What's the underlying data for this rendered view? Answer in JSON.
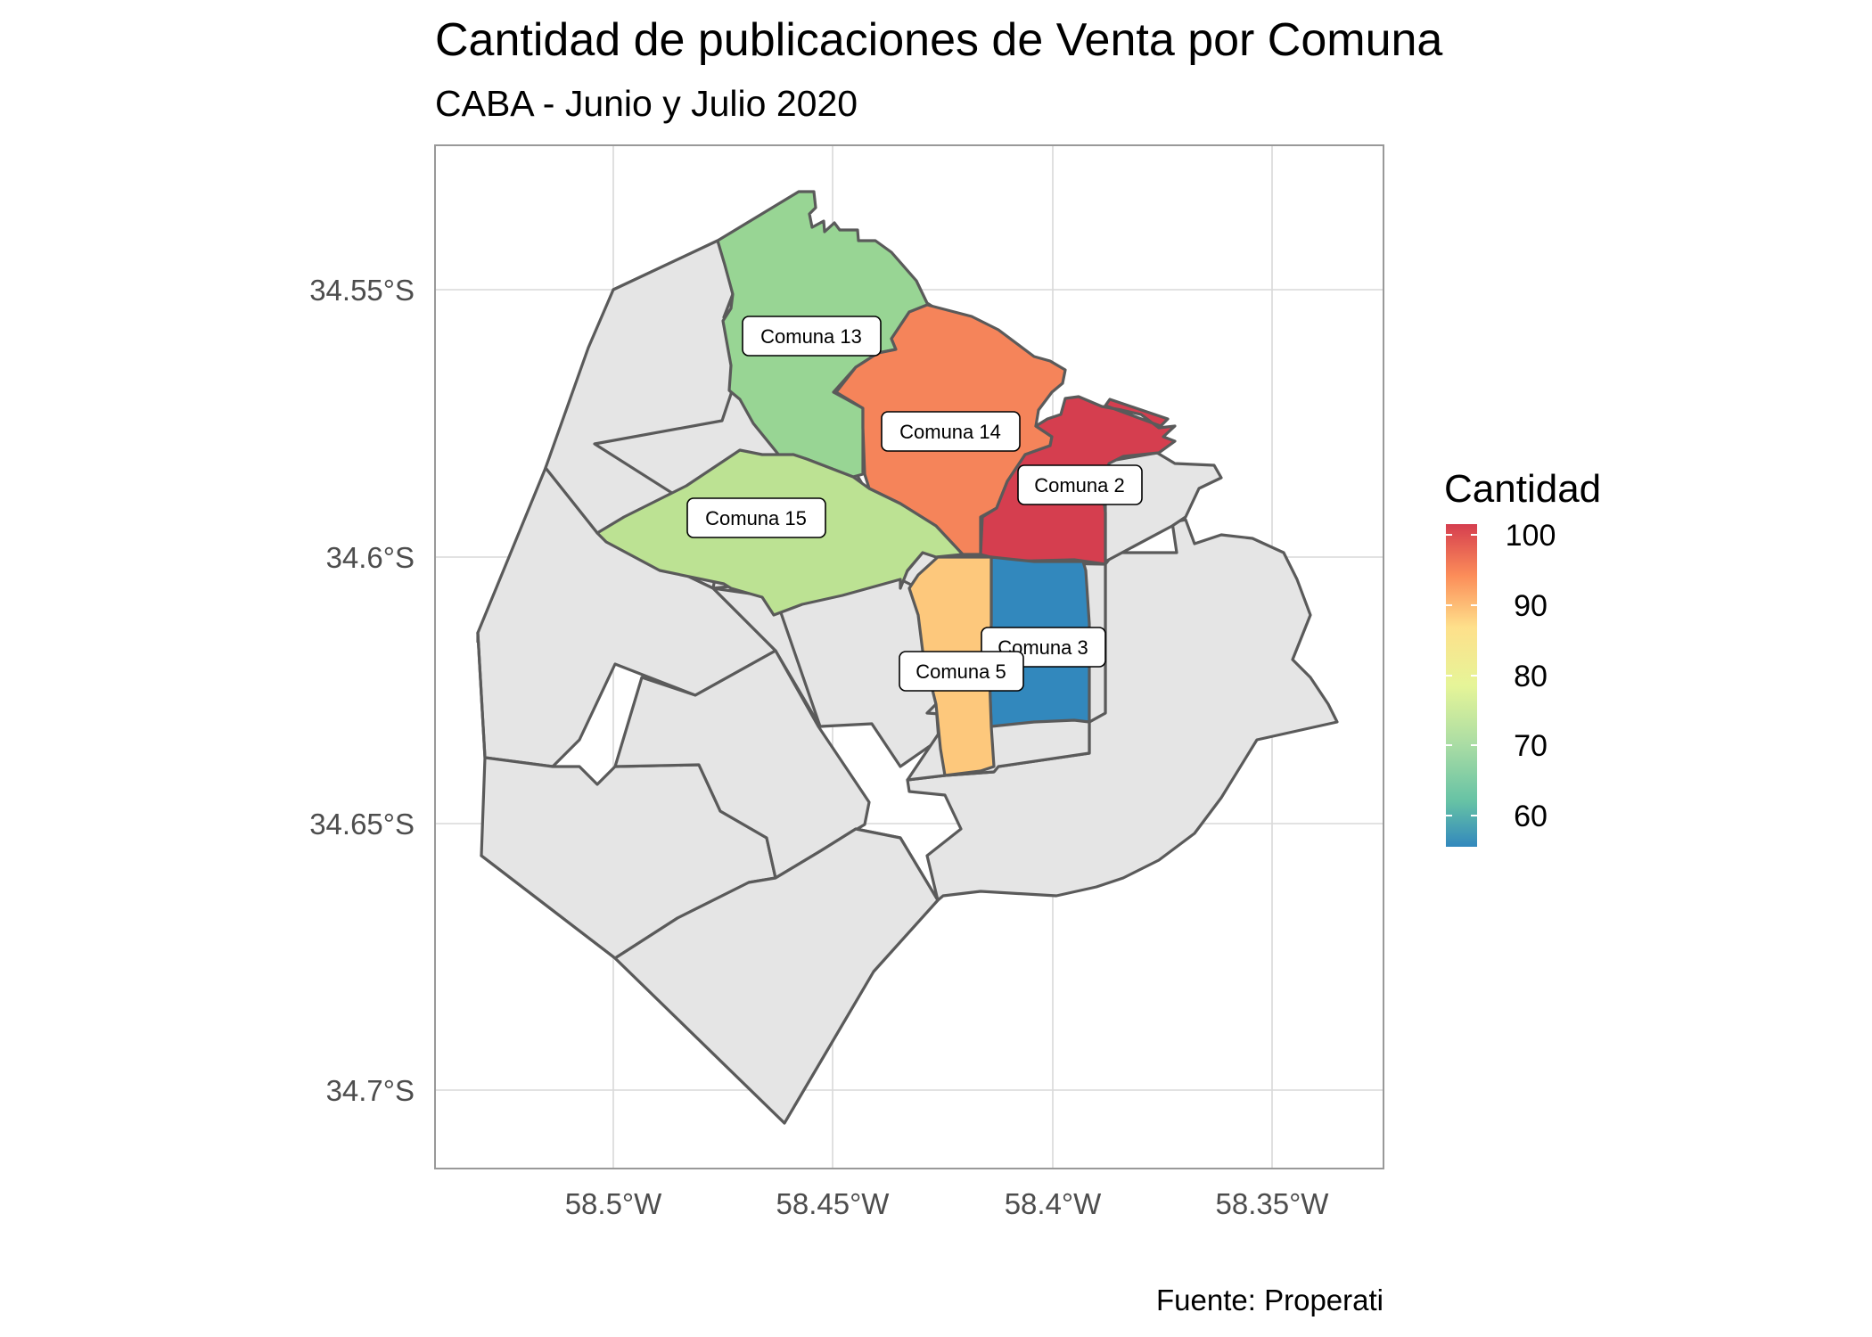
{
  "title": "Cantidad de publicaciones de Venta por Comuna",
  "subtitle": "CABA - Junio y Julio 2020",
  "caption": "Fuente: Properati",
  "axes": {
    "x_ticks": [
      "58.5°W",
      "58.45°W",
      "58.4°W",
      "58.35°W"
    ],
    "y_ticks": [
      "34.55°S",
      "34.6°S",
      "34.65°S",
      "34.7°S"
    ]
  },
  "legend": {
    "title": "Cantidad",
    "ticks": [
      "100",
      "90",
      "80",
      "70",
      "60"
    ],
    "range": [
      55,
      101
    ],
    "palette": "Spectral (blue → green → yellow → orange → red)",
    "stops": [
      "#3288bd",
      "#99d594",
      "#e6f598",
      "#fee08b",
      "#fc8d59",
      "#d53e4f"
    ]
  },
  "colors": {
    "no_data": "#e5e5e5",
    "border": "#5a5a5a",
    "comuna_13": "#98d594",
    "comuna_14": "#f5845a",
    "comuna_15": "#bce293",
    "comuna_2": "#d53e4f",
    "comuna_3": "#3288bd",
    "comuna_5": "#fdc87c"
  },
  "labels": {
    "comuna_13": "Comuna 13",
    "comuna_14": "Comuna 14",
    "comuna_15": "Comuna 15",
    "comuna_2": "Comuna 2",
    "comuna_3": "Comuna 3",
    "comuna_5": "Comuna 5"
  },
  "chart_data": {
    "type": "choropleth",
    "title": "Cantidad de publicaciones de Venta por Comuna",
    "subtitle": "CABA - Junio y Julio 2020",
    "caption": "Fuente: Properati",
    "fill_legend": "Cantidad",
    "fill_scale_range": [
      55,
      101
    ],
    "x_range": [
      "58.54°W",
      "58.33°W"
    ],
    "y_range": [
      "34.518°S",
      "34.729°S"
    ],
    "regions": [
      {
        "name": "Comuna 2",
        "value": 100
      },
      {
        "name": "Comuna 14",
        "value": 92
      },
      {
        "name": "Comuna 5",
        "value": 84
      },
      {
        "name": "Comuna 15",
        "value": 68
      },
      {
        "name": "Comuna 13",
        "value": 63
      },
      {
        "name": "Comuna 3",
        "value": 56
      }
    ]
  }
}
